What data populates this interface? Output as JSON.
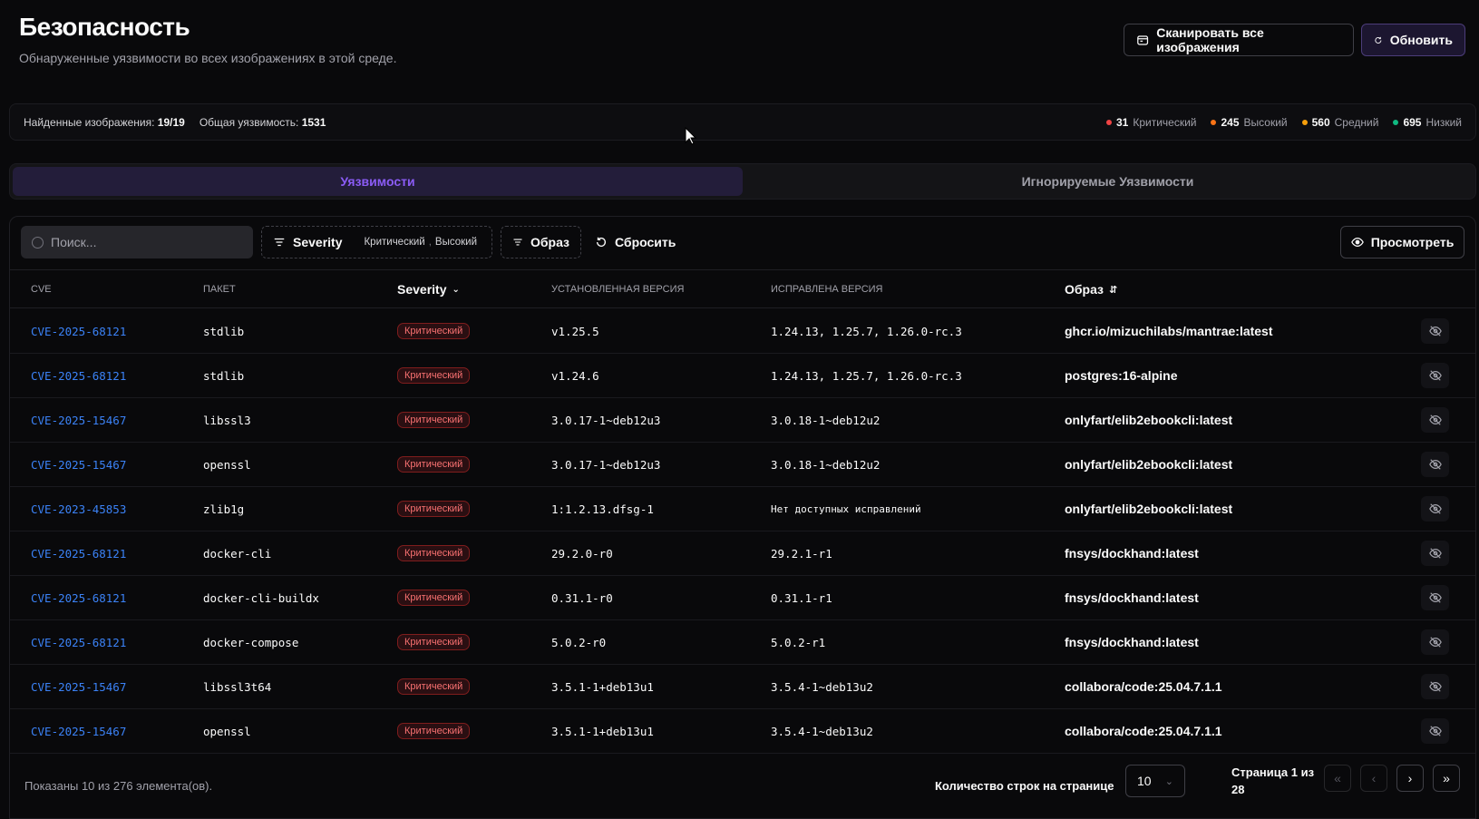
{
  "header": {
    "title": "Безопасность",
    "subtitle": "Обнаруженные уязвимости во всех изображениях в этой среде.",
    "scan_all_label": "Сканировать все изображения",
    "refresh_label": "Обновить"
  },
  "stats": {
    "images_found_label": "Найденные изображения:",
    "images_found_value": "19/19",
    "total_vuln_label": "Общая уязвимость:",
    "total_vuln_value": "1531",
    "critical_count": "31",
    "critical_label": "Критический",
    "high_count": "245",
    "high_label": "Высокий",
    "medium_count": "560",
    "medium_label": "Средний",
    "low_count": "695",
    "low_label": "Низкий"
  },
  "tabs": {
    "vulnerabilities": "Уязвимости",
    "ignored": "Игнорируемые Уязвимости"
  },
  "toolbar": {
    "search_placeholder": "Поиск...",
    "severity_filter": "Severity",
    "severity_chip_1": "Критический",
    "severity_chip_2": "Высокий",
    "image_filter": "Образ",
    "reset": "Сбросить",
    "view": "Просмотреть"
  },
  "table": {
    "headers": {
      "cve": "CVE",
      "package": "ПАКЕТ",
      "severity": "Severity",
      "installed": "УСТАНОВЛЕННАЯ ВЕРСИЯ",
      "fixed": "ИСПРАВЛЕНА ВЕРСИЯ",
      "image": "Образ"
    },
    "rows": [
      {
        "cve": "CVE-2025-68121",
        "package": "stdlib",
        "severity": "Критический",
        "installed": "v1.25.5",
        "fixed": "1.24.13, 1.25.7, 1.26.0-rc.3",
        "image": "ghcr.io/mizuchilabs/mantrae:latest"
      },
      {
        "cve": "CVE-2025-68121",
        "package": "stdlib",
        "severity": "Критический",
        "installed": "v1.24.6",
        "fixed": "1.24.13, 1.25.7, 1.26.0-rc.3",
        "image": "postgres:16-alpine"
      },
      {
        "cve": "CVE-2025-15467",
        "package": "libssl3",
        "severity": "Критический",
        "installed": "3.0.17-1~deb12u3",
        "fixed": "3.0.18-1~deb12u2",
        "image": "onlyfart/elib2ebookcli:latest"
      },
      {
        "cve": "CVE-2025-15467",
        "package": "openssl",
        "severity": "Критический",
        "installed": "3.0.17-1~deb12u3",
        "fixed": "3.0.18-1~deb12u2",
        "image": "onlyfart/elib2ebookcli:latest"
      },
      {
        "cve": "CVE-2023-45853",
        "package": "zlib1g",
        "severity": "Критический",
        "installed": "1:1.2.13.dfsg-1",
        "fixed": "Нет доступных исправлений",
        "image": "onlyfart/elib2ebookcli:latest"
      },
      {
        "cve": "CVE-2025-68121",
        "package": "docker-cli",
        "severity": "Критический",
        "installed": "29.2.0-r0",
        "fixed": "29.2.1-r1",
        "image": "fnsys/dockhand:latest"
      },
      {
        "cve": "CVE-2025-68121",
        "package": "docker-cli-buildx",
        "severity": "Критический",
        "installed": "0.31.1-r0",
        "fixed": "0.31.1-r1",
        "image": "fnsys/dockhand:latest"
      },
      {
        "cve": "CVE-2025-68121",
        "package": "docker-compose",
        "severity": "Критический",
        "installed": "5.0.2-r0",
        "fixed": "5.0.2-r1",
        "image": "fnsys/dockhand:latest"
      },
      {
        "cve": "CVE-2025-15467",
        "package": "libssl3t64",
        "severity": "Критический",
        "installed": "3.5.1-1+deb13u1",
        "fixed": "3.5.4-1~deb13u2",
        "image": "collabora/code:25.04.7.1.1"
      },
      {
        "cve": "CVE-2025-15467",
        "package": "openssl",
        "severity": "Критический",
        "installed": "3.5.1-1+deb13u1",
        "fixed": "3.5.4-1~deb13u2",
        "image": "collabora/code:25.04.7.1.1"
      }
    ]
  },
  "footer": {
    "showing": "Показаны 10 из 276 элемента(ов).",
    "rows_per_page_label": "Количество строк на странице",
    "rows_per_page_value": "10",
    "page_line_1": "Страница 1 из",
    "page_line_2": "28"
  },
  "colors": {
    "accent": "#8b5cf6",
    "critical": "#ef4444",
    "high": "#f97316",
    "medium": "#f59e0b",
    "low": "#10b981",
    "link": "#3b82f6"
  }
}
